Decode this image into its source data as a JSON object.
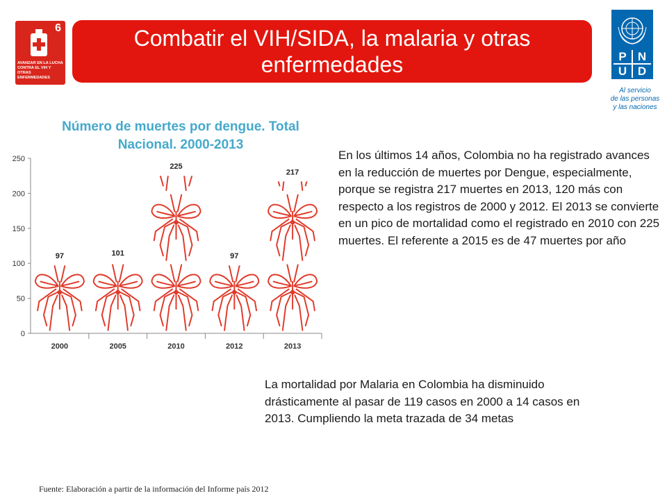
{
  "badge": {
    "goal_number": "6",
    "text": "AVANZAR EN LA LUCHA CONTRA EL VIH Y OTRAS ENFERMEDADES",
    "icon": "medicine-bottle-icon"
  },
  "header": {
    "title": "Combatir el VIH/SIDA, la malaria y otras enfermedades"
  },
  "logo": {
    "letters": [
      "P",
      "N",
      "U",
      "D"
    ],
    "tagline_lines": [
      "Al servicio",
      "de las personas",
      "y las naciones"
    ],
    "color": "#0468b1"
  },
  "chart_data": {
    "type": "bar",
    "title": "Número de muertes por dengue. Total Nacional. 2000-2013",
    "categories": [
      "2000",
      "2005",
      "2010",
      "2012",
      "2013"
    ],
    "values": [
      97,
      101,
      225,
      97,
      217
    ],
    "ylim": [
      0,
      250
    ],
    "yticks": [
      0,
      50,
      100,
      150,
      200,
      250
    ],
    "bar_style": "pictogram (stacked mosquito icons)",
    "icon": "mosquito-icon",
    "icon_unit": 100,
    "grid": false,
    "legend": "none",
    "color": "#e03a2a"
  },
  "text": {
    "paragraph1": "En los últimos 14 años, Colombia no ha registrado avances en la reducción de muertes por Dengue, especialmente, porque se registra 217 muertes en 2013, 120 más con respecto a los registros de 2000 y 2012. El 2013 se convierte en un pico de mortalidad como el registrado en 2010 con 225 muertes. El referente a 2015 es de 47 muertes por año",
    "paragraph2": "La mortalidad por Malaria en Colombia ha disminuido drásticamente al pasar de 119 casos en 2000 a 14 casos en 2013. Cumpliendo la meta trazada de 34 metas",
    "source": "Fuente: Elaboración  a partir de la información del Informe país 2012"
  }
}
